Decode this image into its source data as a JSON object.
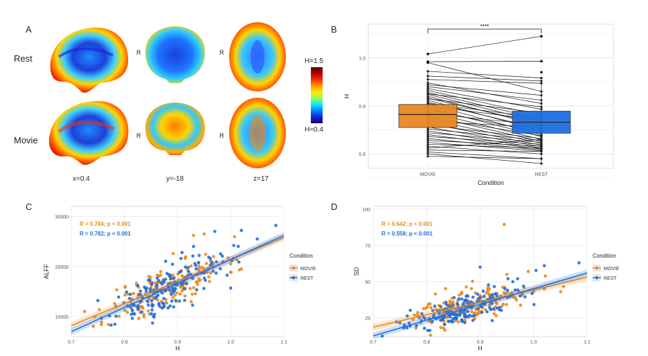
{
  "panel_a": {
    "letter": "A",
    "rows": [
      "Rest",
      "Movie"
    ],
    "side_marker": "R",
    "coords": [
      "x=0.4",
      "y=-18",
      "z=17"
    ],
    "colorbar": {
      "top_label": "H=1.5",
      "bottom_label": "H=0.4",
      "colors": [
        "#5a0000",
        "#b40000",
        "#ff2a00",
        "#ff9a00",
        "#ffe800",
        "#8fff60",
        "#00e8ff",
        "#0080ff",
        "#1a20d8",
        "#1a006e"
      ]
    }
  },
  "panel_b": {
    "letter": "B"
  },
  "panel_c": {
    "letter": "C"
  },
  "panel_d": {
    "letter": "D"
  },
  "chart_data": [
    {
      "type": "box",
      "panel": "B",
      "categories": [
        "MOVIE",
        "REST"
      ],
      "xlabel": "Condition",
      "ylabel": "H",
      "ylim": [
        0.77,
        1.07
      ],
      "yticks": [
        0.8,
        0.9,
        1.0
      ],
      "ytick_labels": [
        "0.8",
        "0.9",
        "1.0"
      ],
      "boxes": [
        {
          "name": "MOVIE",
          "q1": 0.855,
          "median": 0.882,
          "q3": 0.903,
          "whisker_low": 0.795,
          "whisker_high": 0.972,
          "color": "#e8891f",
          "outliers": [
            1.008,
            0.992,
            0.99
          ]
        },
        {
          "name": "REST",
          "q1": 0.843,
          "median": 0.866,
          "q3": 0.889,
          "whisker_low": 0.78,
          "whisker_high": 0.955,
          "color": "#1f6fe0",
          "outliers": [
            1.045,
            0.993,
            0.97
          ]
        }
      ],
      "paired_lines": [
        [
          1.008,
          1.045
        ],
        [
          0.992,
          0.993
        ],
        [
          0.99,
          0.93
        ],
        [
          0.972,
          0.958
        ],
        [
          0.962,
          0.952
        ],
        [
          0.955,
          0.947
        ],
        [
          0.948,
          0.905
        ],
        [
          0.944,
          0.922
        ],
        [
          0.94,
          0.912
        ],
        [
          0.936,
          0.893
        ],
        [
          0.932,
          0.88
        ],
        [
          0.928,
          0.872
        ],
        [
          0.924,
          0.866
        ],
        [
          0.92,
          0.858
        ],
        [
          0.916,
          0.862
        ],
        [
          0.912,
          0.848
        ],
        [
          0.908,
          0.852
        ],
        [
          0.904,
          0.84
        ],
        [
          0.9,
          0.87
        ],
        [
          0.896,
          0.836
        ],
        [
          0.892,
          0.845
        ],
        [
          0.888,
          0.83
        ],
        [
          0.884,
          0.86
        ],
        [
          0.88,
          0.826
        ],
        [
          0.876,
          0.838
        ],
        [
          0.872,
          0.822
        ],
        [
          0.868,
          0.855
        ],
        [
          0.864,
          0.818
        ],
        [
          0.86,
          0.832
        ],
        [
          0.856,
          0.815
        ],
        [
          0.852,
          0.828
        ],
        [
          0.848,
          0.812
        ],
        [
          0.844,
          0.824
        ],
        [
          0.84,
          0.81
        ],
        [
          0.836,
          0.82
        ],
        [
          0.832,
          0.808
        ],
        [
          0.828,
          0.816
        ],
        [
          0.824,
          0.806
        ],
        [
          0.82,
          0.812
        ],
        [
          0.816,
          0.8
        ],
        [
          0.812,
          0.83
        ],
        [
          0.808,
          0.805
        ],
        [
          0.804,
          0.79
        ],
        [
          0.8,
          0.78
        ],
        [
          0.795,
          0.79
        ],
        [
          0.925,
          0.898
        ],
        [
          0.915,
          0.885
        ],
        [
          0.905,
          0.875
        ]
      ],
      "significance": "****"
    },
    {
      "type": "scatter",
      "panel": "C",
      "xlabel": "H",
      "ylabel": "ALFF",
      "xlim": [
        0.7,
        1.1
      ],
      "ylim": [
        6000,
        32000
      ],
      "xticks": [
        0.7,
        0.8,
        0.9,
        1.0,
        1.1
      ],
      "xtick_labels": [
        "0.7",
        "0.8",
        "0.9",
        "1.0",
        "1.1"
      ],
      "yticks": [
        10000,
        20000,
        30000
      ],
      "ytick_labels": [
        "10000",
        "20000",
        "30000"
      ],
      "annotations": [
        {
          "text": "R = 0.784; p < 0.001",
          "color": "#e8891f"
        },
        {
          "text": "R = 0.782; p < 0.001",
          "color": "#1f6fe0"
        }
      ],
      "legend": {
        "title": "Condition",
        "entries": [
          {
            "label": "MOVIE",
            "color": "#e8891f"
          },
          {
            "label": "REST",
            "color": "#1f6fe0"
          }
        ]
      },
      "series": [
        {
          "name": "MOVIE",
          "color": "#e8891f",
          "fit": {
            "x": [
              0.7,
              1.1
            ],
            "y": [
              8200,
              25800
            ]
          },
          "center": [
            0.88,
            15800
          ],
          "slope": 44000,
          "spread_x": 0.055,
          "noise": 2300,
          "n": 170,
          "seed": 11,
          "extra_points": [
            [
              0.93,
              26200
            ],
            [
              0.95,
              26500
            ],
            [
              1.0,
              20500
            ],
            [
              1.02,
              19500
            ],
            [
              0.96,
              17000
            ]
          ]
        },
        {
          "name": "REST",
          "color": "#1f6fe0",
          "fit": {
            "x": [
              0.7,
              1.1
            ],
            "y": [
              7000,
              26200
            ]
          },
          "center": [
            0.87,
            15200
          ],
          "slope": 48000,
          "spread_x": 0.055,
          "noise": 2200,
          "n": 170,
          "seed": 29,
          "extra_points": [
            [
              1.085,
              28200
            ],
            [
              1.02,
              27200
            ],
            [
              0.97,
              27000
            ],
            [
              0.93,
              24000
            ],
            [
              1.05,
              25500
            ],
            [
              0.75,
              13200
            ]
          ]
        }
      ]
    },
    {
      "type": "scatter",
      "panel": "D",
      "xlabel": "H",
      "ylabel": "SD",
      "xlim": [
        0.7,
        1.1
      ],
      "ylim": [
        12,
        102
      ],
      "xticks": [
        0.7,
        0.8,
        0.9,
        1.0,
        1.1
      ],
      "xtick_labels": [
        "0.7",
        "0.8",
        "0.9",
        "1.0",
        "1.1"
      ],
      "yticks": [
        25,
        50,
        75,
        100
      ],
      "ytick_labels": [
        "25",
        "50",
        "75",
        "100"
      ],
      "annotations": [
        {
          "text": "R = 0.642; p < 0.001",
          "color": "#e8891f"
        },
        {
          "text": "R = 0.558; p < 0.001",
          "color": "#1f6fe0"
        }
      ],
      "legend": {
        "title": "Condition",
        "entries": [
          {
            "label": "MOVIE",
            "color": "#e8891f"
          },
          {
            "label": "REST",
            "color": "#1f6fe0"
          }
        ]
      },
      "series": [
        {
          "name": "MOVIE",
          "color": "#e8891f",
          "fit": {
            "x": [
              0.7,
              1.1
            ],
            "y": [
              18.5,
              53
            ]
          },
          "center": [
            0.88,
            33
          ],
          "slope": 88,
          "spread_x": 0.055,
          "noise": 5.5,
          "n": 170,
          "seed": 47,
          "extra_points": [
            [
              0.945,
              89.5
            ],
            [
              0.99,
              57
            ],
            [
              0.95,
              55
            ],
            [
              1.02,
              45
            ],
            [
              1.0,
              43
            ]
          ]
        },
        {
          "name": "REST",
          "color": "#1f6fe0",
          "fit": {
            "x": [
              0.7,
              1.1
            ],
            "y": [
              12.5,
              56
            ]
          },
          "center": [
            0.87,
            31
          ],
          "slope": 105,
          "spread_x": 0.055,
          "noise": 5,
          "n": 170,
          "seed": 83,
          "extra_points": [
            [
              1.085,
              63
            ],
            [
              0.9,
              60
            ],
            [
              1.02,
              61
            ],
            [
              0.75,
              21.5
            ],
            [
              0.97,
              52
            ]
          ]
        }
      ]
    }
  ]
}
